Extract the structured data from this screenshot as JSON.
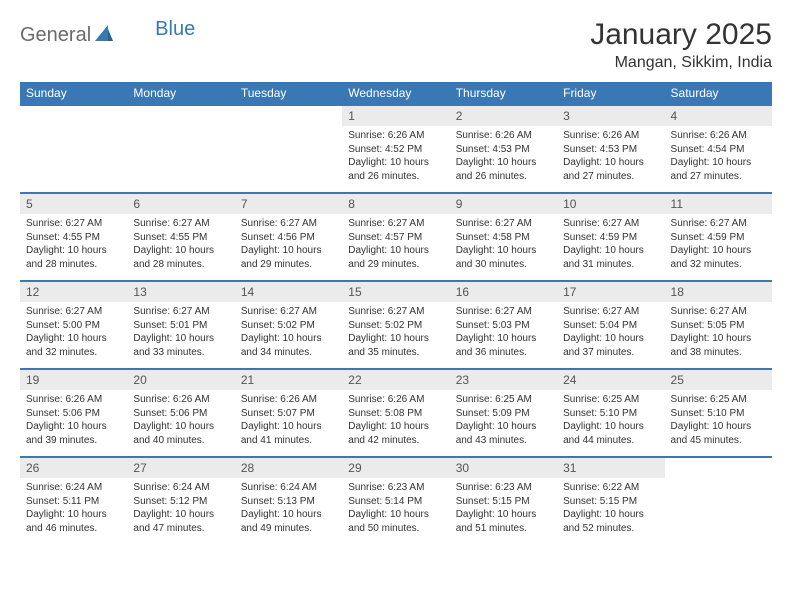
{
  "logo": {
    "text1": "General",
    "text2": "Blue"
  },
  "title": "January 2025",
  "location": "Mangan, Sikkim, India",
  "colors": {
    "header_bg": "#3a78b5",
    "header_text": "#ffffff",
    "daynum_bg": "#ebebeb",
    "body_text": "#333333",
    "logo_gray": "#6b6b6b",
    "logo_blue": "#3a78b5",
    "page_bg": "#ffffff"
  },
  "day_headers": [
    "Sunday",
    "Monday",
    "Tuesday",
    "Wednesday",
    "Thursday",
    "Friday",
    "Saturday"
  ],
  "weeks": [
    [
      {
        "empty": true
      },
      {
        "empty": true
      },
      {
        "empty": true
      },
      {
        "n": "1",
        "sunrise": "Sunrise: 6:26 AM",
        "sunset": "Sunset: 4:52 PM",
        "day1": "Daylight: 10 hours",
        "day2": "and 26 minutes."
      },
      {
        "n": "2",
        "sunrise": "Sunrise: 6:26 AM",
        "sunset": "Sunset: 4:53 PM",
        "day1": "Daylight: 10 hours",
        "day2": "and 26 minutes."
      },
      {
        "n": "3",
        "sunrise": "Sunrise: 6:26 AM",
        "sunset": "Sunset: 4:53 PM",
        "day1": "Daylight: 10 hours",
        "day2": "and 27 minutes."
      },
      {
        "n": "4",
        "sunrise": "Sunrise: 6:26 AM",
        "sunset": "Sunset: 4:54 PM",
        "day1": "Daylight: 10 hours",
        "day2": "and 27 minutes."
      }
    ],
    [
      {
        "n": "5",
        "sunrise": "Sunrise: 6:27 AM",
        "sunset": "Sunset: 4:55 PM",
        "day1": "Daylight: 10 hours",
        "day2": "and 28 minutes."
      },
      {
        "n": "6",
        "sunrise": "Sunrise: 6:27 AM",
        "sunset": "Sunset: 4:55 PM",
        "day1": "Daylight: 10 hours",
        "day2": "and 28 minutes."
      },
      {
        "n": "7",
        "sunrise": "Sunrise: 6:27 AM",
        "sunset": "Sunset: 4:56 PM",
        "day1": "Daylight: 10 hours",
        "day2": "and 29 minutes."
      },
      {
        "n": "8",
        "sunrise": "Sunrise: 6:27 AM",
        "sunset": "Sunset: 4:57 PM",
        "day1": "Daylight: 10 hours",
        "day2": "and 29 minutes."
      },
      {
        "n": "9",
        "sunrise": "Sunrise: 6:27 AM",
        "sunset": "Sunset: 4:58 PM",
        "day1": "Daylight: 10 hours",
        "day2": "and 30 minutes."
      },
      {
        "n": "10",
        "sunrise": "Sunrise: 6:27 AM",
        "sunset": "Sunset: 4:59 PM",
        "day1": "Daylight: 10 hours",
        "day2": "and 31 minutes."
      },
      {
        "n": "11",
        "sunrise": "Sunrise: 6:27 AM",
        "sunset": "Sunset: 4:59 PM",
        "day1": "Daylight: 10 hours",
        "day2": "and 32 minutes."
      }
    ],
    [
      {
        "n": "12",
        "sunrise": "Sunrise: 6:27 AM",
        "sunset": "Sunset: 5:00 PM",
        "day1": "Daylight: 10 hours",
        "day2": "and 32 minutes."
      },
      {
        "n": "13",
        "sunrise": "Sunrise: 6:27 AM",
        "sunset": "Sunset: 5:01 PM",
        "day1": "Daylight: 10 hours",
        "day2": "and 33 minutes."
      },
      {
        "n": "14",
        "sunrise": "Sunrise: 6:27 AM",
        "sunset": "Sunset: 5:02 PM",
        "day1": "Daylight: 10 hours",
        "day2": "and 34 minutes."
      },
      {
        "n": "15",
        "sunrise": "Sunrise: 6:27 AM",
        "sunset": "Sunset: 5:02 PM",
        "day1": "Daylight: 10 hours",
        "day2": "and 35 minutes."
      },
      {
        "n": "16",
        "sunrise": "Sunrise: 6:27 AM",
        "sunset": "Sunset: 5:03 PM",
        "day1": "Daylight: 10 hours",
        "day2": "and 36 minutes."
      },
      {
        "n": "17",
        "sunrise": "Sunrise: 6:27 AM",
        "sunset": "Sunset: 5:04 PM",
        "day1": "Daylight: 10 hours",
        "day2": "and 37 minutes."
      },
      {
        "n": "18",
        "sunrise": "Sunrise: 6:27 AM",
        "sunset": "Sunset: 5:05 PM",
        "day1": "Daylight: 10 hours",
        "day2": "and 38 minutes."
      }
    ],
    [
      {
        "n": "19",
        "sunrise": "Sunrise: 6:26 AM",
        "sunset": "Sunset: 5:06 PM",
        "day1": "Daylight: 10 hours",
        "day2": "and 39 minutes."
      },
      {
        "n": "20",
        "sunrise": "Sunrise: 6:26 AM",
        "sunset": "Sunset: 5:06 PM",
        "day1": "Daylight: 10 hours",
        "day2": "and 40 minutes."
      },
      {
        "n": "21",
        "sunrise": "Sunrise: 6:26 AM",
        "sunset": "Sunset: 5:07 PM",
        "day1": "Daylight: 10 hours",
        "day2": "and 41 minutes."
      },
      {
        "n": "22",
        "sunrise": "Sunrise: 6:26 AM",
        "sunset": "Sunset: 5:08 PM",
        "day1": "Daylight: 10 hours",
        "day2": "and 42 minutes."
      },
      {
        "n": "23",
        "sunrise": "Sunrise: 6:25 AM",
        "sunset": "Sunset: 5:09 PM",
        "day1": "Daylight: 10 hours",
        "day2": "and 43 minutes."
      },
      {
        "n": "24",
        "sunrise": "Sunrise: 6:25 AM",
        "sunset": "Sunset: 5:10 PM",
        "day1": "Daylight: 10 hours",
        "day2": "and 44 minutes."
      },
      {
        "n": "25",
        "sunrise": "Sunrise: 6:25 AM",
        "sunset": "Sunset: 5:10 PM",
        "day1": "Daylight: 10 hours",
        "day2": "and 45 minutes."
      }
    ],
    [
      {
        "n": "26",
        "sunrise": "Sunrise: 6:24 AM",
        "sunset": "Sunset: 5:11 PM",
        "day1": "Daylight: 10 hours",
        "day2": "and 46 minutes."
      },
      {
        "n": "27",
        "sunrise": "Sunrise: 6:24 AM",
        "sunset": "Sunset: 5:12 PM",
        "day1": "Daylight: 10 hours",
        "day2": "and 47 minutes."
      },
      {
        "n": "28",
        "sunrise": "Sunrise: 6:24 AM",
        "sunset": "Sunset: 5:13 PM",
        "day1": "Daylight: 10 hours",
        "day2": "and 49 minutes."
      },
      {
        "n": "29",
        "sunrise": "Sunrise: 6:23 AM",
        "sunset": "Sunset: 5:14 PM",
        "day1": "Daylight: 10 hours",
        "day2": "and 50 minutes."
      },
      {
        "n": "30",
        "sunrise": "Sunrise: 6:23 AM",
        "sunset": "Sunset: 5:15 PM",
        "day1": "Daylight: 10 hours",
        "day2": "and 51 minutes."
      },
      {
        "n": "31",
        "sunrise": "Sunrise: 6:22 AM",
        "sunset": "Sunset: 5:15 PM",
        "day1": "Daylight: 10 hours",
        "day2": "and 52 minutes."
      },
      {
        "empty": true
      }
    ]
  ]
}
